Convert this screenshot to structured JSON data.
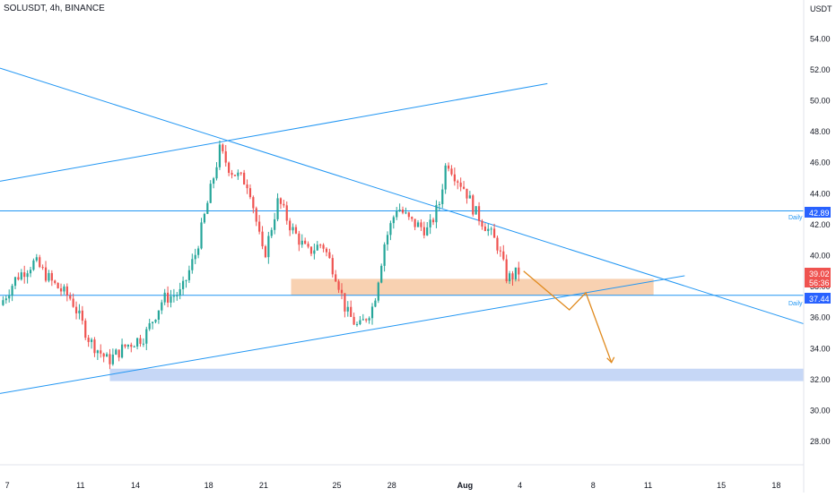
{
  "header": {
    "symbol_title": "SOLUSDT, 4h, BINANCE"
  },
  "price_axis": {
    "unit_label": "USDT",
    "ticks": [
      "54.00",
      "52.00",
      "50.00",
      "48.00",
      "46.00",
      "44.00",
      "42.00",
      "40.00",
      "38.00",
      "36.00",
      "34.00",
      "32.00",
      "30.00",
      "28.00"
    ]
  },
  "time_axis": {
    "ticks": [
      {
        "label": "7",
        "day": 7
      },
      {
        "label": "11",
        "day": 11
      },
      {
        "label": "14",
        "day": 14
      },
      {
        "label": "18",
        "day": 18
      },
      {
        "label": "21",
        "day": 21
      },
      {
        "label": "25",
        "day": 25
      },
      {
        "label": "28",
        "day": 28
      },
      {
        "label": "Aug",
        "day": 32
      },
      {
        "label": "4",
        "day": 35
      },
      {
        "label": "8",
        "day": 39
      },
      {
        "label": "11",
        "day": 42
      },
      {
        "label": "15",
        "day": 46
      },
      {
        "label": "18",
        "day": 49
      }
    ]
  },
  "price_badges": {
    "last_price": "39.02",
    "countdown": "56:36",
    "upper_level": "42.89",
    "lower_level": "37.44",
    "colors": {
      "last": "#ef5350",
      "level": "#2962ff"
    }
  },
  "level_labels": {
    "upper": "Daily",
    "lower": "Daily"
  },
  "chart_data": {
    "type": "candlestick",
    "symbol": "SOLUSDT",
    "interval": "4h",
    "exchange": "BINANCE",
    "x_unit": "day (July = 1-31, Aug 1 = 32)",
    "xlim": [
      6.6,
      50.5
    ],
    "ylim": [
      26.5,
      56.5
    ],
    "colors": {
      "up": "#26a69a",
      "down": "#ef5350",
      "line": "#2196f3",
      "supply_zone": "#f7c9a3",
      "demand_zone": "#bcd0f5",
      "arrow": "#e08a1e"
    },
    "horizontal_levels": [
      {
        "price": 42.89,
        "label": "Daily"
      },
      {
        "price": 37.44,
        "label": "Daily"
      }
    ],
    "trend_lines": [
      {
        "from": [
          6.6,
          52.1
        ],
        "to": [
          50.5,
          35.6
        ]
      },
      {
        "from": [
          6.6,
          44.8
        ],
        "to": [
          36.5,
          51.1
        ]
      },
      {
        "from": [
          6.6,
          31.1
        ],
        "to": [
          44.0,
          38.7
        ]
      }
    ],
    "zones": [
      {
        "name": "supply",
        "x": [
          22.5,
          42.3
        ],
        "y": [
          37.44,
          38.5
        ]
      },
      {
        "name": "demand",
        "x": [
          12.6,
          50.5
        ],
        "y": [
          31.9,
          32.7
        ]
      }
    ],
    "projection_path": [
      [
        35.2,
        39.0
      ],
      [
        37.7,
        36.5
      ],
      [
        38.6,
        37.6
      ],
      [
        40.0,
        33.1
      ]
    ],
    "candle_key": [
      [
        6.6,
        36.8
      ],
      [
        7.5,
        38.6
      ],
      [
        8.5,
        39.6
      ],
      [
        9.5,
        38.2
      ],
      [
        10.5,
        37.2
      ],
      [
        11.5,
        34.5
      ],
      [
        12.5,
        33.2
      ],
      [
        13.5,
        34.2
      ],
      [
        14.5,
        34.8
      ],
      [
        15.5,
        37.2
      ],
      [
        16.5,
        37.6
      ],
      [
        17.3,
        40.2
      ],
      [
        17.9,
        43.2
      ],
      [
        18.6,
        46.8
      ],
      [
        19.2,
        45.5
      ],
      [
        20.2,
        44.6
      ],
      [
        21.0,
        39.8
      ],
      [
        21.8,
        43.6
      ],
      [
        22.5,
        41.8
      ],
      [
        23.4,
        40.2
      ],
      [
        24.2,
        40.8
      ],
      [
        25.0,
        38.6
      ],
      [
        25.5,
        36.4
      ],
      [
        26.2,
        35.3
      ],
      [
        27.0,
        36.8
      ],
      [
        27.6,
        40.8
      ],
      [
        28.3,
        43.2
      ],
      [
        29.0,
        42.2
      ],
      [
        30.0,
        41.6
      ],
      [
        30.6,
        43.4
      ],
      [
        31.0,
        46.2
      ],
      [
        31.5,
        45.1
      ],
      [
        32.0,
        44.3
      ],
      [
        32.5,
        42.9
      ],
      [
        33.2,
        41.8
      ],
      [
        33.8,
        40.6
      ],
      [
        34.3,
        38.5
      ],
      [
        34.6,
        38.7
      ],
      [
        35.0,
        39.0
      ]
    ]
  }
}
